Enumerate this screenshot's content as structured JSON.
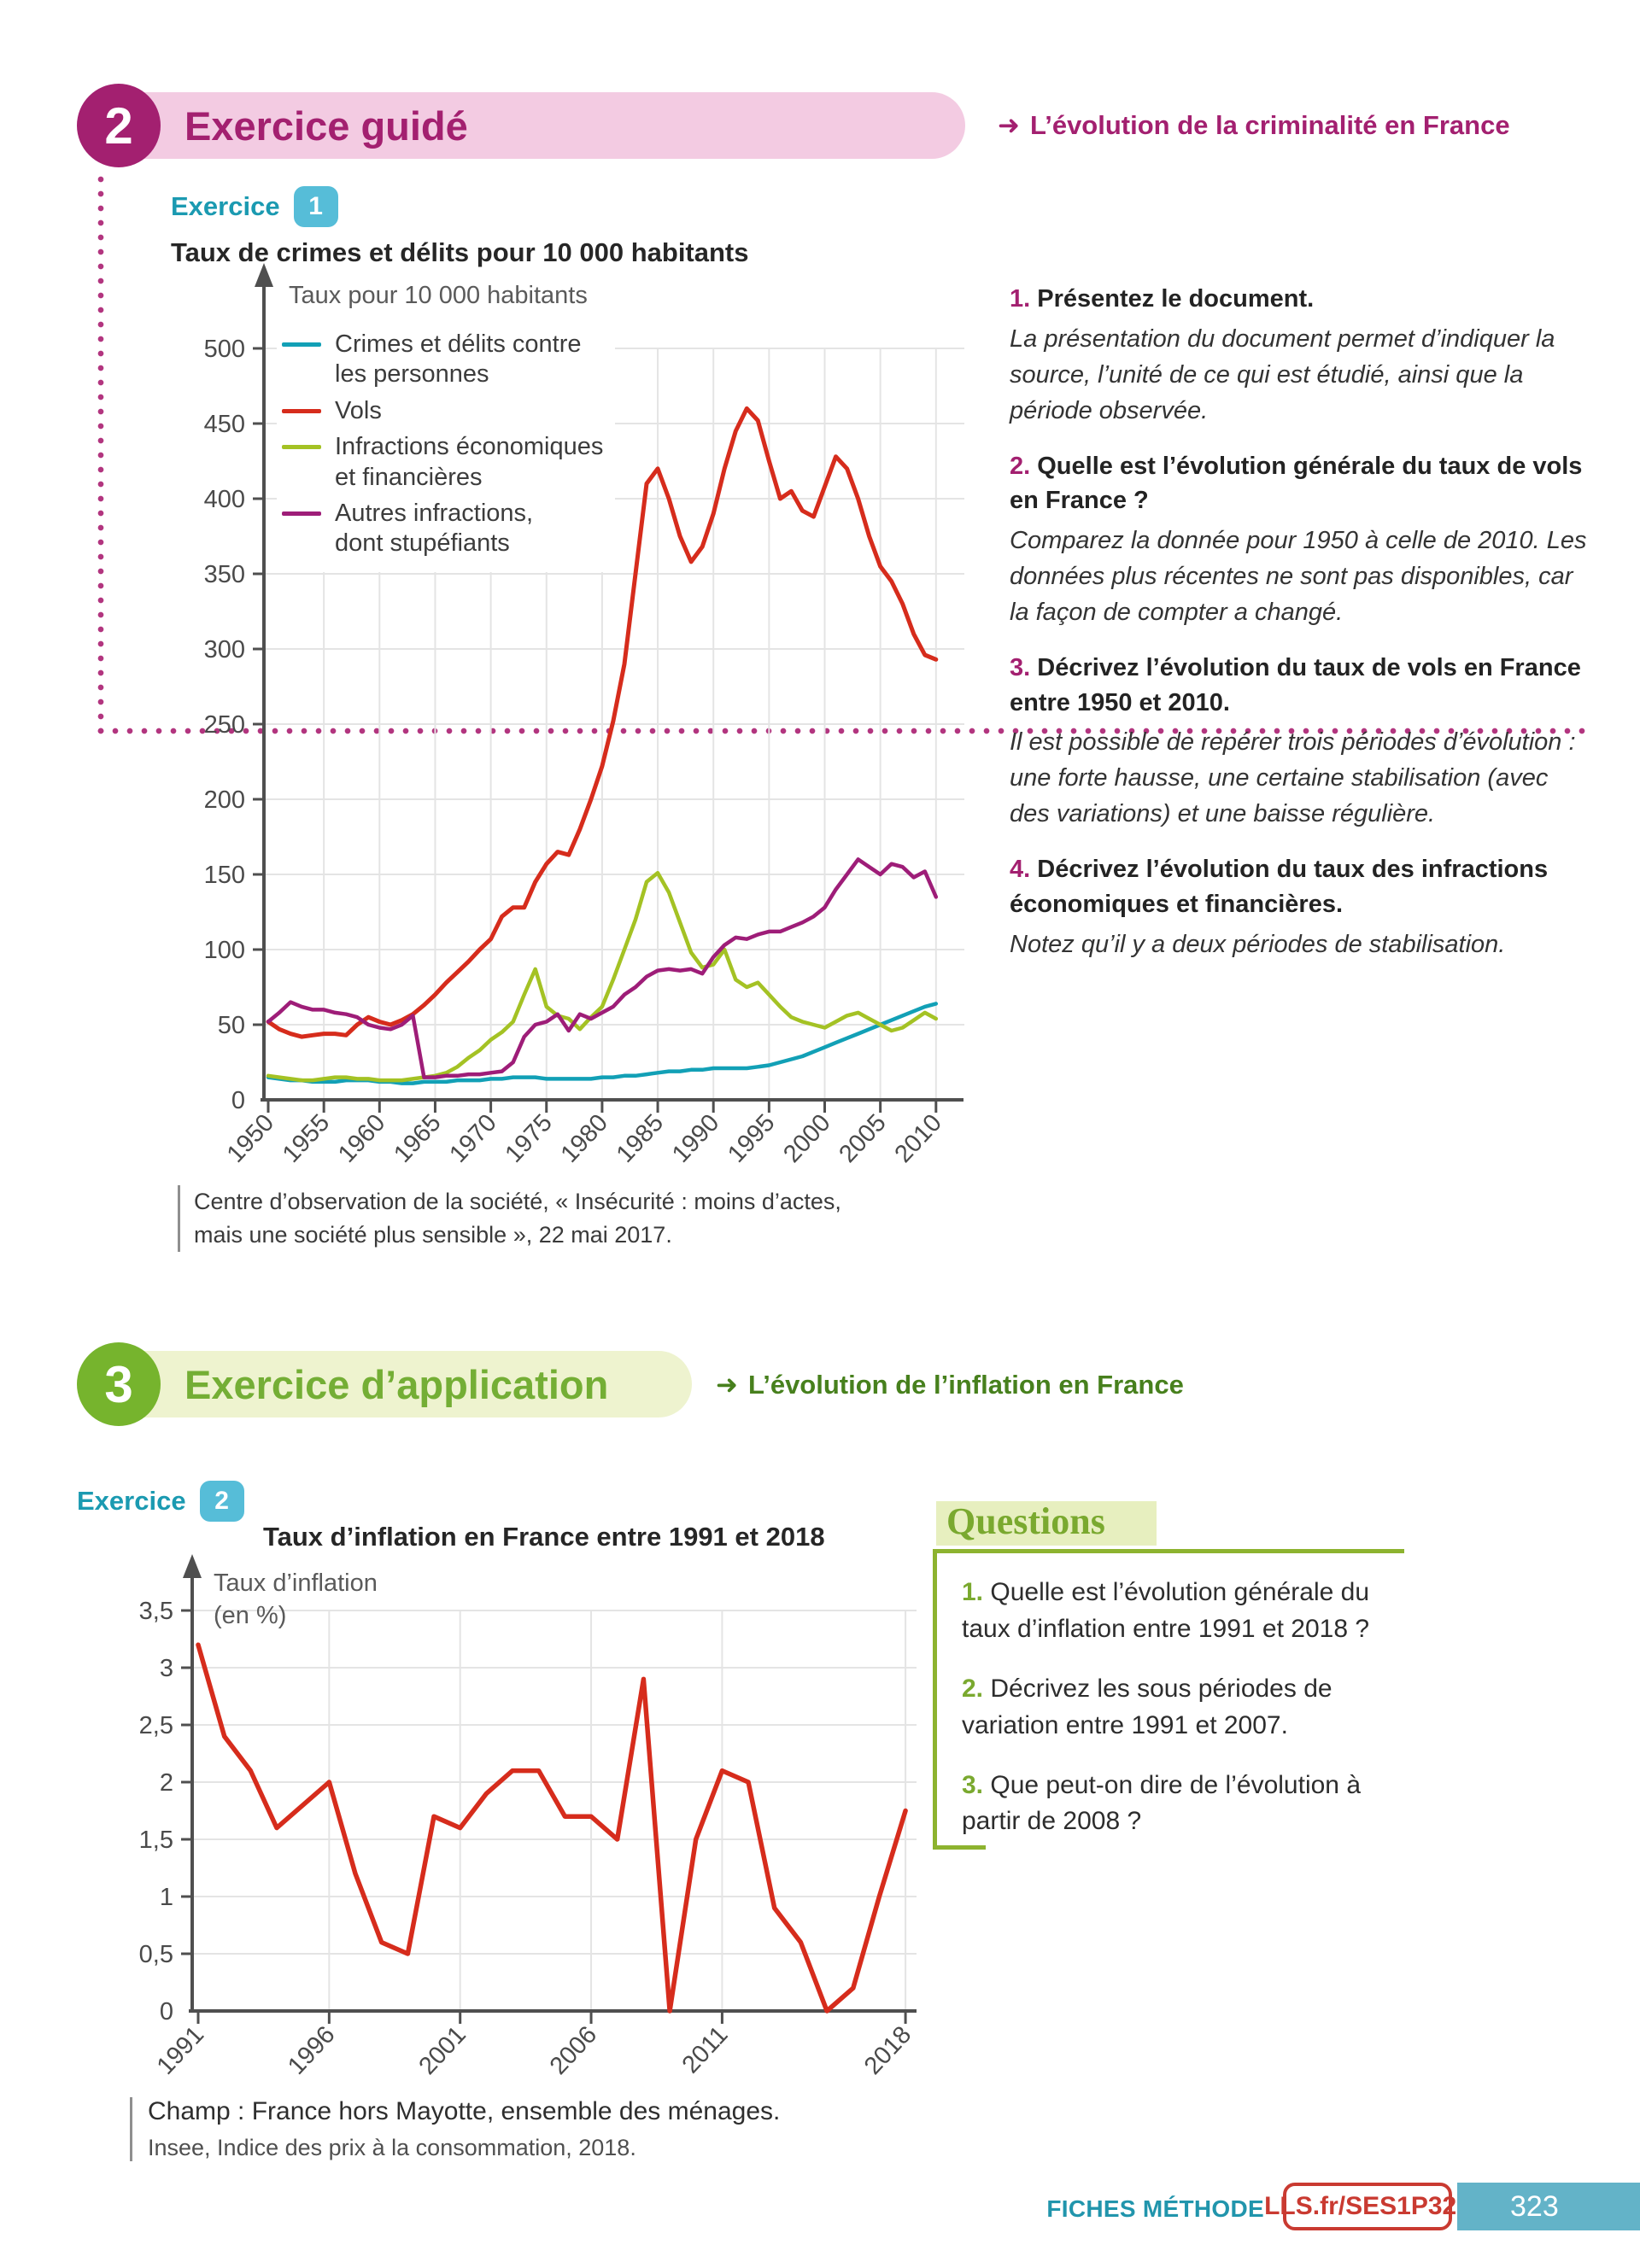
{
  "header2": {
    "num": "2",
    "title": "Exercice guidé",
    "arrow": "➜",
    "subtitle": "L’évolution de la criminalité en France"
  },
  "header3": {
    "num": "3",
    "title": "Exercice d’application",
    "arrow": "➜",
    "subtitle": "L’évolution de l’inflation en France"
  },
  "exercise1": {
    "label": "Exercice",
    "badge": "1",
    "chart_title": "Taux de crimes et délits pour 10 000 habitants",
    "questions": [
      {
        "num": "1.",
        "q": "Présentez le document.",
        "hint": "La présentation du document permet d’indiquer la source, l’unité de ce qui est étudié, ainsi que la période observée."
      },
      {
        "num": "2.",
        "q": "Quelle est l’évolution générale du taux de vols en France ?",
        "hint": "Comparez la donnée pour 1950 à celle de 2010. Les données plus récentes ne sont pas disponibles, car la façon de compter a changé."
      },
      {
        "num": "3.",
        "q": "Décrivez l’évolution du taux de vols en France entre 1950 et 2010.",
        "hint": "Il est possible de repérer trois périodes d’évolution : une forte hausse, une certaine stabilisation (avec des variations) et une baisse régulière."
      },
      {
        "num": "4.",
        "q": "Décrivez l’évolution du taux des infractions économiques et financières.",
        "hint": "Notez qu’il y a deux périodes de stabilisation."
      }
    ],
    "source": "Centre d’observation de la société, « Insécurité : moins d’actes,\nmais une société plus sensible », 22 mai 2017."
  },
  "exercise2": {
    "label": "Exercice",
    "badge": "2",
    "chart_title": "Taux d’inflation en France entre 1991 et 2018",
    "questions_title": "Questions",
    "questions": [
      {
        "num": "1.",
        "text": "Quelle est l’évolution générale du taux d’inflation entre 1991 et 2018 ?"
      },
      {
        "num": "2.",
        "text": "Décrivez les sous périodes de variation entre 1991 et 2007."
      },
      {
        "num": "3.",
        "text": "Que peut-on dire de l’évolution à partir de 2008 ?"
      }
    ],
    "champ": "Champ : France hors Mayotte, ensemble des ménages.",
    "source": "Insee, Indice des prix à la consommation, 2018."
  },
  "footer": {
    "label": "FICHES MÉTHODE",
    "link": "LLS.fr/SES1P323",
    "page": "323"
  },
  "chart_data": [
    {
      "type": "line",
      "title": "Taux de crimes et délits pour 10 000 habitants",
      "ylabel": "Taux pour 10 000 habitants",
      "xlabel": "",
      "x_start": 1950,
      "x_end": 2010,
      "x_ticks": [
        1950,
        1955,
        1960,
        1965,
        1970,
        1975,
        1980,
        1985,
        1990,
        1995,
        2000,
        2005,
        2010
      ],
      "ylim": [
        0,
        500
      ],
      "y_tick_step": 50,
      "grid": true,
      "legend_position": "top-left",
      "series": [
        {
          "name": "Crimes et délits contre\nles personnes",
          "color": "#12a0b6",
          "values": [
            15,
            14,
            13,
            13,
            12,
            12,
            12,
            13,
            13,
            13,
            12,
            12,
            11,
            11,
            12,
            12,
            12,
            13,
            13,
            13,
            14,
            14,
            15,
            15,
            15,
            14,
            14,
            14,
            14,
            14,
            15,
            15,
            16,
            16,
            17,
            18,
            19,
            19,
            20,
            20,
            21,
            21,
            21,
            21,
            22,
            23,
            25,
            27,
            29,
            32,
            35,
            38,
            41,
            44,
            47,
            50,
            53,
            56,
            59,
            62,
            64
          ]
        },
        {
          "name": "Vols",
          "color": "#d62c1c",
          "values": [
            52,
            47,
            44,
            42,
            43,
            44,
            44,
            43,
            50,
            55,
            52,
            50,
            53,
            57,
            63,
            70,
            78,
            85,
            92,
            100,
            107,
            122,
            128,
            128,
            145,
            157,
            165,
            163,
            180,
            200,
            222,
            252,
            290,
            350,
            410,
            420,
            400,
            375,
            358,
            368,
            390,
            420,
            445,
            460,
            452,
            425,
            400,
            405,
            392,
            388,
            408,
            428,
            420,
            400,
            375,
            355,
            345,
            330,
            310,
            296,
            293
          ]
        },
        {
          "name": "Infractions économiques\net financières",
          "color": "#a4c224",
          "values": [
            16,
            15,
            14,
            13,
            13,
            14,
            15,
            15,
            14,
            14,
            13,
            13,
            13,
            14,
            15,
            16,
            18,
            22,
            28,
            33,
            40,
            45,
            52,
            70,
            87,
            62,
            56,
            54,
            47,
            55,
            62,
            80,
            100,
            120,
            145,
            151,
            138,
            118,
            98,
            88,
            90,
            100,
            80,
            75,
            78,
            70,
            62,
            55,
            52,
            50,
            48,
            52,
            56,
            58,
            54,
            50,
            46,
            48,
            53,
            58,
            54
          ]
        },
        {
          "name": "Autres infractions,\ndont stupéfiants",
          "color": "#9e1d78",
          "values": [
            52,
            58,
            65,
            62,
            60,
            60,
            58,
            57,
            55,
            50,
            48,
            47,
            50,
            56,
            15,
            15,
            16,
            16,
            17,
            17,
            18,
            19,
            25,
            42,
            50,
            52,
            57,
            46,
            57,
            54,
            58,
            62,
            70,
            75,
            82,
            86,
            87,
            86,
            87,
            84,
            95,
            103,
            108,
            107,
            110,
            112,
            112,
            115,
            118,
            122,
            128,
            140,
            150,
            160,
            155,
            150,
            157,
            155,
            148,
            152,
            135
          ]
        }
      ]
    },
    {
      "type": "line",
      "title": "Taux d’inflation en France entre 1991 et 2018",
      "ylabel": "Taux d’inflation\n(en %)",
      "xlabel": "",
      "x_start": 1991,
      "x_end": 2018,
      "x_ticks": [
        1991,
        1996,
        2001,
        2006,
        2011,
        2018
      ],
      "ylim": [
        0,
        3.5
      ],
      "y_tick_step": 0.5,
      "y_tick_labels": [
        "0",
        "0,5",
        "1",
        "1,5",
        "2",
        "2,5",
        "3",
        "3,5"
      ],
      "grid": true,
      "series": [
        {
          "name": "Taux d’inflation",
          "color": "#d62c1c",
          "values": [
            3.2,
            2.4,
            2.1,
            1.6,
            1.8,
            2.0,
            1.2,
            0.6,
            0.5,
            1.7,
            1.6,
            1.9,
            2.1,
            2.1,
            1.7,
            1.7,
            1.5,
            2.9,
            0.0,
            1.5,
            2.1,
            2.0,
            0.9,
            0.6,
            0.0,
            0.2,
            1.0,
            1.75
          ]
        }
      ]
    }
  ]
}
